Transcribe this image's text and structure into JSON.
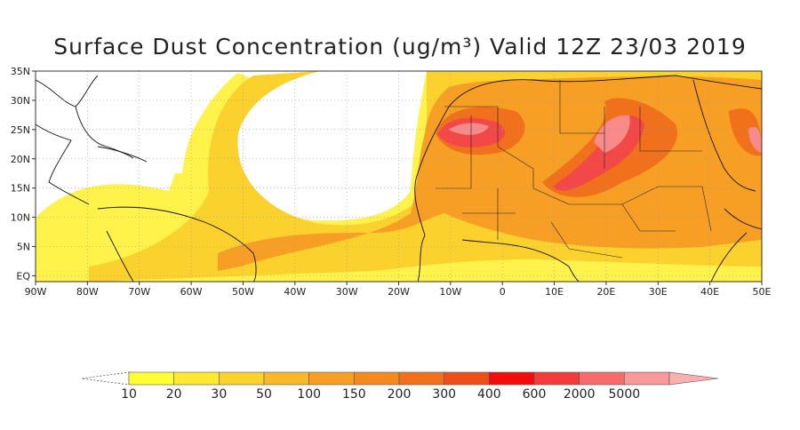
{
  "title": "Surface Dust Concentration (ug/m³) Valid 12Z 23/03 2019",
  "map": {
    "lat_labels": [
      "35N",
      "30N",
      "25N",
      "20N",
      "15N",
      "10N",
      "5N",
      "EQ"
    ],
    "lon_labels": [
      "90W",
      "80W",
      "70W",
      "60W",
      "50W",
      "40W",
      "30W",
      "20W",
      "10W",
      "0",
      "10E",
      "20E",
      "30E",
      "40E",
      "50E"
    ],
    "extent": {
      "lon": [
        -90,
        50
      ],
      "lat": [
        -1,
        35
      ]
    }
  },
  "colorbar": {
    "labels": [
      "10",
      "20",
      "30",
      "50",
      "100",
      "150",
      "200",
      "300",
      "400",
      "600",
      "2000",
      "5000"
    ],
    "colors": [
      "#ffff33",
      "#fde832",
      "#fbd12e",
      "#f9b829",
      "#f79f24",
      "#f4891f",
      "#f0701c",
      "#ec4f1a",
      "#f20c0c",
      "#f43c3c",
      "#f66b6b",
      "#f99a9a"
    ],
    "below_color": "#ffffff",
    "above_color": "#fbb0b0"
  }
}
